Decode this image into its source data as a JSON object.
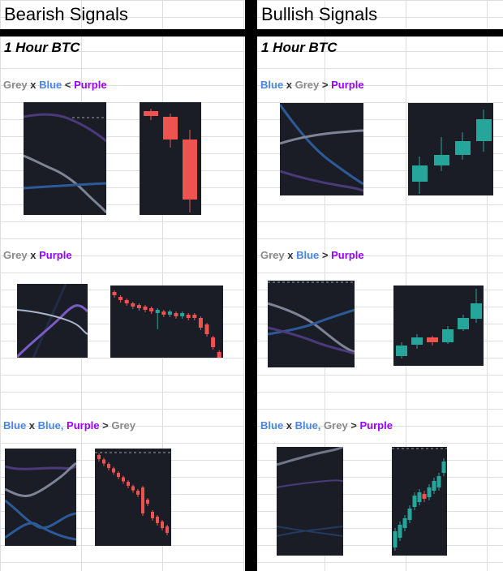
{
  "bearish": {
    "title": "Bearish Signals",
    "timeframe": "1 Hour BTC",
    "signals": [
      {
        "parts": [
          {
            "text": "Grey",
            "c": "grey"
          },
          {
            "text": " x ",
            "c": "op"
          },
          {
            "text": "Blue",
            "c": "blue"
          },
          {
            "text": " < ",
            "c": "op"
          },
          {
            "text": "Purple",
            "c": "purple"
          }
        ]
      },
      {
        "parts": [
          {
            "text": "Grey",
            "c": "grey"
          },
          {
            "text": " x ",
            "c": "op"
          },
          {
            "text": "Purple",
            "c": "purple"
          }
        ]
      },
      {
        "parts": [
          {
            "text": "Blue",
            "c": "blue"
          },
          {
            "text": " x ",
            "c": "op"
          },
          {
            "text": "Blue, ",
            "c": "blue"
          },
          {
            "text": "Purple",
            "c": "purple"
          },
          {
            "text": " > ",
            "c": "op"
          },
          {
            "text": "Grey",
            "c": "grey"
          }
        ]
      }
    ]
  },
  "bullish": {
    "title": "Bullish Signals",
    "timeframe": "1 Hour BTC",
    "signals": [
      {
        "parts": [
          {
            "text": "Blue",
            "c": "blue"
          },
          {
            "text": " x ",
            "c": "op"
          },
          {
            "text": "Grey",
            "c": "grey"
          },
          {
            "text": " > ",
            "c": "op"
          },
          {
            "text": "Purple",
            "c": "purple"
          }
        ]
      },
      {
        "parts": [
          {
            "text": "Grey",
            "c": "grey"
          },
          {
            "text": " x ",
            "c": "op"
          },
          {
            "text": "Blue",
            "c": "blue"
          },
          {
            "text": " > ",
            "c": "op"
          },
          {
            "text": "Purple",
            "c": "purple"
          }
        ]
      },
      {
        "parts": [
          {
            "text": "Blue",
            "c": "blue"
          },
          {
            "text": " x ",
            "c": "op"
          },
          {
            "text": "Blue, ",
            "c": "blue"
          },
          {
            "text": "Grey",
            "c": "grey"
          },
          {
            "text": " > ",
            "c": "op"
          },
          {
            "text": "Purple",
            "c": "purple"
          }
        ]
      }
    ]
  },
  "colors": {
    "grey_line": "#8c95a6",
    "blue_line": "#2f6bb3",
    "purple_line": "#5b3f9e",
    "bull_candle": "#26a69a",
    "bear_candle": "#ef5350",
    "panel_bg": "#1b1d26"
  }
}
